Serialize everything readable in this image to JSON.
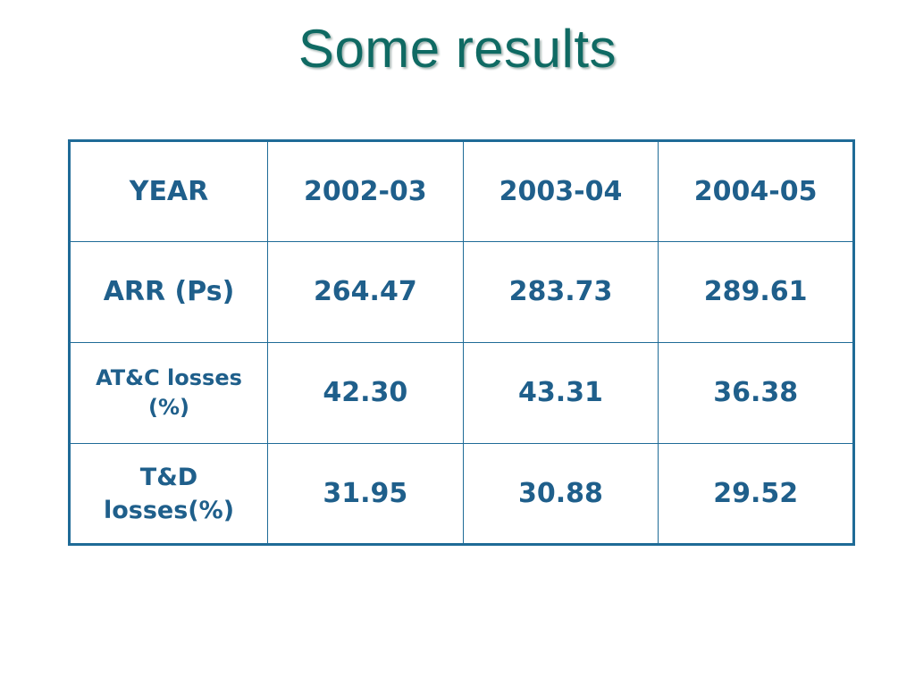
{
  "slide": {
    "title": "Some results"
  },
  "table": {
    "header": {
      "label": "YEAR",
      "years": [
        "2002-03",
        "2003-04",
        "2004-05"
      ]
    },
    "rows": [
      {
        "label": "ARR (Ps)",
        "values": [
          "264.47",
          "283.73",
          "289.61"
        ]
      },
      {
        "label_line1": "AT&C losses",
        "label_line2": "(%)",
        "values": [
          "42.30",
          "43.31",
          "36.38"
        ]
      },
      {
        "label_line1": "T&D",
        "label_line2": "losses(%)",
        "values": [
          "31.95",
          "30.88",
          "29.52"
        ]
      }
    ]
  },
  "colors": {
    "title": "#0f6a63",
    "table_text": "#1f5f8b",
    "table_border": "#1f6b97"
  }
}
